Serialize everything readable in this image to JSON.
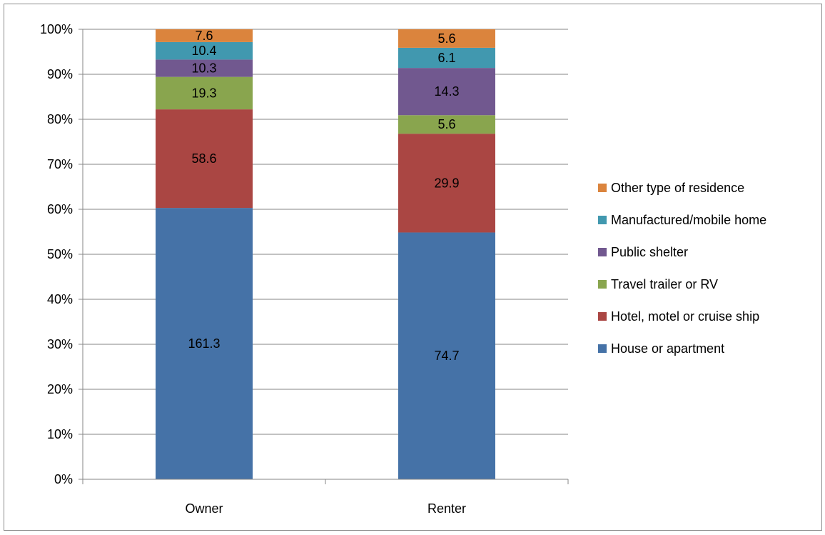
{
  "chart_data": {
    "type": "bar",
    "stacked": true,
    "normalized": true,
    "categories": [
      "Owner",
      "Renter"
    ],
    "series": [
      {
        "name": "House or apartment",
        "values": [
          161.3,
          74.7
        ],
        "color": "#4572a7"
      },
      {
        "name": "Hotel, motel or cruise ship",
        "values": [
          58.6,
          29.9
        ],
        "color": "#aa4643"
      },
      {
        "name": "Travel trailer or RV",
        "values": [
          19.3,
          5.6
        ],
        "color": "#89a54e"
      },
      {
        "name": "Public shelter",
        "values": [
          10.3,
          14.3
        ],
        "color": "#71588f"
      },
      {
        "name": "Manufactured/mobile home",
        "values": [
          10.4,
          6.1
        ],
        "color": "#4198af"
      },
      {
        "name": "Other type of residence",
        "values": [
          7.6,
          5.6
        ],
        "color": "#db843d"
      }
    ],
    "y_ticks": [
      "0%",
      "10%",
      "20%",
      "30%",
      "40%",
      "50%",
      "60%",
      "70%",
      "80%",
      "90%",
      "100%"
    ],
    "ylim": [
      0,
      100
    ],
    "grid": true,
    "legend_position": "right",
    "title": "",
    "xlabel": "",
    "ylabel": ""
  }
}
